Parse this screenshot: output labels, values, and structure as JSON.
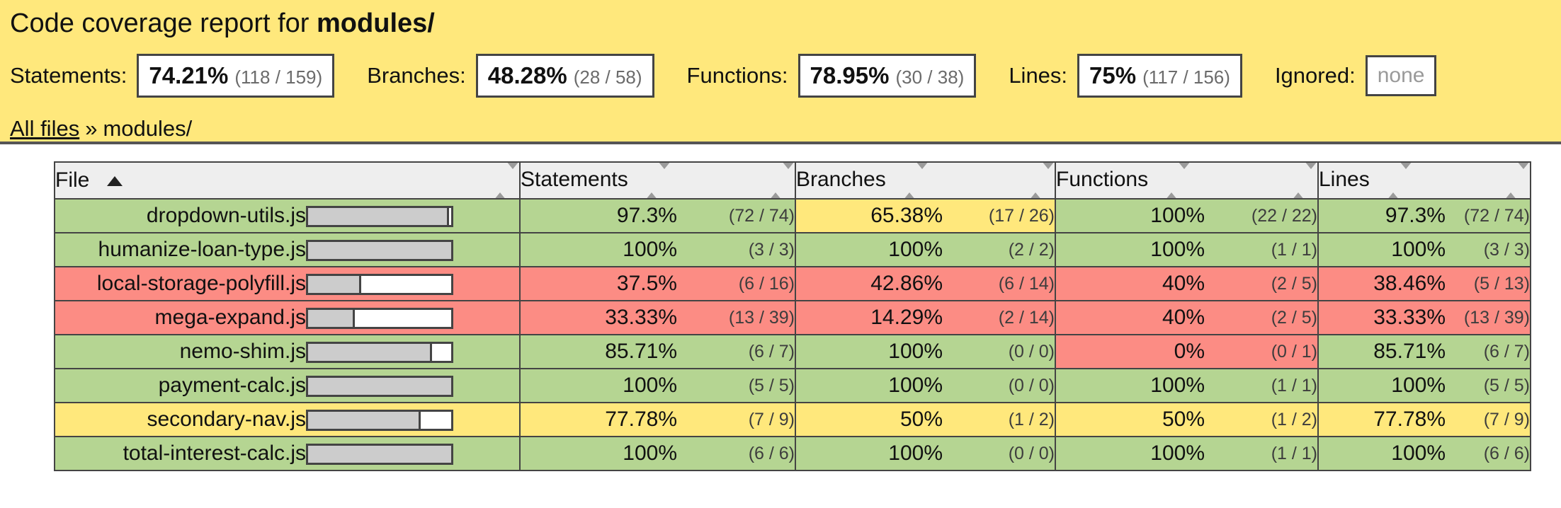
{
  "colors": {
    "high": "#b5d592",
    "medium": "#ffe87c",
    "low": "#fc8c84",
    "header_bg": "#eeeeee",
    "border": "#444444",
    "bar_fill": "#cccccc"
  },
  "header": {
    "title_prefix": "Code coverage report for ",
    "title_entity": "modules/",
    "summary": [
      {
        "label": "Statements:",
        "pct": "74.21%",
        "fraction": "(118 / 159)"
      },
      {
        "label": "Branches:",
        "pct": "48.28%",
        "fraction": "(28 / 58)"
      },
      {
        "label": "Functions:",
        "pct": "78.95%",
        "fraction": "(30 / 38)"
      },
      {
        "label": "Lines:",
        "pct": "75%",
        "fraction": "(117 / 156)"
      },
      {
        "label": "Ignored:",
        "none_value": "none"
      }
    ],
    "breadcrumb": {
      "all_files": "All files",
      "separator": "»",
      "current": "modules/"
    }
  },
  "table": {
    "columns": [
      "File",
      "Statements",
      "Branches",
      "Functions",
      "Lines"
    ],
    "sort": {
      "column": "File",
      "direction": "ascending"
    },
    "rows": [
      {
        "file": "dropdown-utils.js",
        "level": "high",
        "bar_pct": 97.3,
        "statements": {
          "pct": "97.3%",
          "abs": "(72 / 74)",
          "level": "high"
        },
        "branches": {
          "pct": "65.38%",
          "abs": "(17 / 26)",
          "level": "medium"
        },
        "functions": {
          "pct": "100%",
          "abs": "(22 / 22)",
          "level": "high"
        },
        "lines": {
          "pct": "97.3%",
          "abs": "(72 / 74)",
          "level": "high"
        }
      },
      {
        "file": "humanize-loan-type.js",
        "level": "high",
        "bar_pct": 100,
        "statements": {
          "pct": "100%",
          "abs": "(3 / 3)",
          "level": "high"
        },
        "branches": {
          "pct": "100%",
          "abs": "(2 / 2)",
          "level": "high"
        },
        "functions": {
          "pct": "100%",
          "abs": "(1 / 1)",
          "level": "high"
        },
        "lines": {
          "pct": "100%",
          "abs": "(3 / 3)",
          "level": "high"
        }
      },
      {
        "file": "local-storage-polyfill.js",
        "level": "low",
        "bar_pct": 37.5,
        "statements": {
          "pct": "37.5%",
          "abs": "(6 / 16)",
          "level": "low"
        },
        "branches": {
          "pct": "42.86%",
          "abs": "(6 / 14)",
          "level": "low"
        },
        "functions": {
          "pct": "40%",
          "abs": "(2 / 5)",
          "level": "low"
        },
        "lines": {
          "pct": "38.46%",
          "abs": "(5 / 13)",
          "level": "low"
        }
      },
      {
        "file": "mega-expand.js",
        "level": "low",
        "bar_pct": 33.33,
        "statements": {
          "pct": "33.33%",
          "abs": "(13 / 39)",
          "level": "low"
        },
        "branches": {
          "pct": "14.29%",
          "abs": "(2 / 14)",
          "level": "low"
        },
        "functions": {
          "pct": "40%",
          "abs": "(2 / 5)",
          "level": "low"
        },
        "lines": {
          "pct": "33.33%",
          "abs": "(13 / 39)",
          "level": "low"
        }
      },
      {
        "file": "nemo-shim.js",
        "level": "high",
        "bar_pct": 85.71,
        "statements": {
          "pct": "85.71%",
          "abs": "(6 / 7)",
          "level": "high"
        },
        "branches": {
          "pct": "100%",
          "abs": "(0 / 0)",
          "level": "high"
        },
        "functions": {
          "pct": "0%",
          "abs": "(0 / 1)",
          "level": "low"
        },
        "lines": {
          "pct": "85.71%",
          "abs": "(6 / 7)",
          "level": "high"
        }
      },
      {
        "file": "payment-calc.js",
        "level": "high",
        "bar_pct": 100,
        "statements": {
          "pct": "100%",
          "abs": "(5 / 5)",
          "level": "high"
        },
        "branches": {
          "pct": "100%",
          "abs": "(0 / 0)",
          "level": "high"
        },
        "functions": {
          "pct": "100%",
          "abs": "(1 / 1)",
          "level": "high"
        },
        "lines": {
          "pct": "100%",
          "abs": "(5 / 5)",
          "level": "high"
        }
      },
      {
        "file": "secondary-nav.js",
        "level": "medium",
        "bar_pct": 77.78,
        "statements": {
          "pct": "77.78%",
          "abs": "(7 / 9)",
          "level": "medium"
        },
        "branches": {
          "pct": "50%",
          "abs": "(1 / 2)",
          "level": "medium"
        },
        "functions": {
          "pct": "50%",
          "abs": "(1 / 2)",
          "level": "medium"
        },
        "lines": {
          "pct": "77.78%",
          "abs": "(7 / 9)",
          "level": "medium"
        }
      },
      {
        "file": "total-interest-calc.js",
        "level": "high",
        "bar_pct": 100,
        "statements": {
          "pct": "100%",
          "abs": "(6 / 6)",
          "level": "high"
        },
        "branches": {
          "pct": "100%",
          "abs": "(0 / 0)",
          "level": "high"
        },
        "functions": {
          "pct": "100%",
          "abs": "(1 / 1)",
          "level": "high"
        },
        "lines": {
          "pct": "100%",
          "abs": "(6 / 6)",
          "level": "high"
        }
      }
    ]
  }
}
